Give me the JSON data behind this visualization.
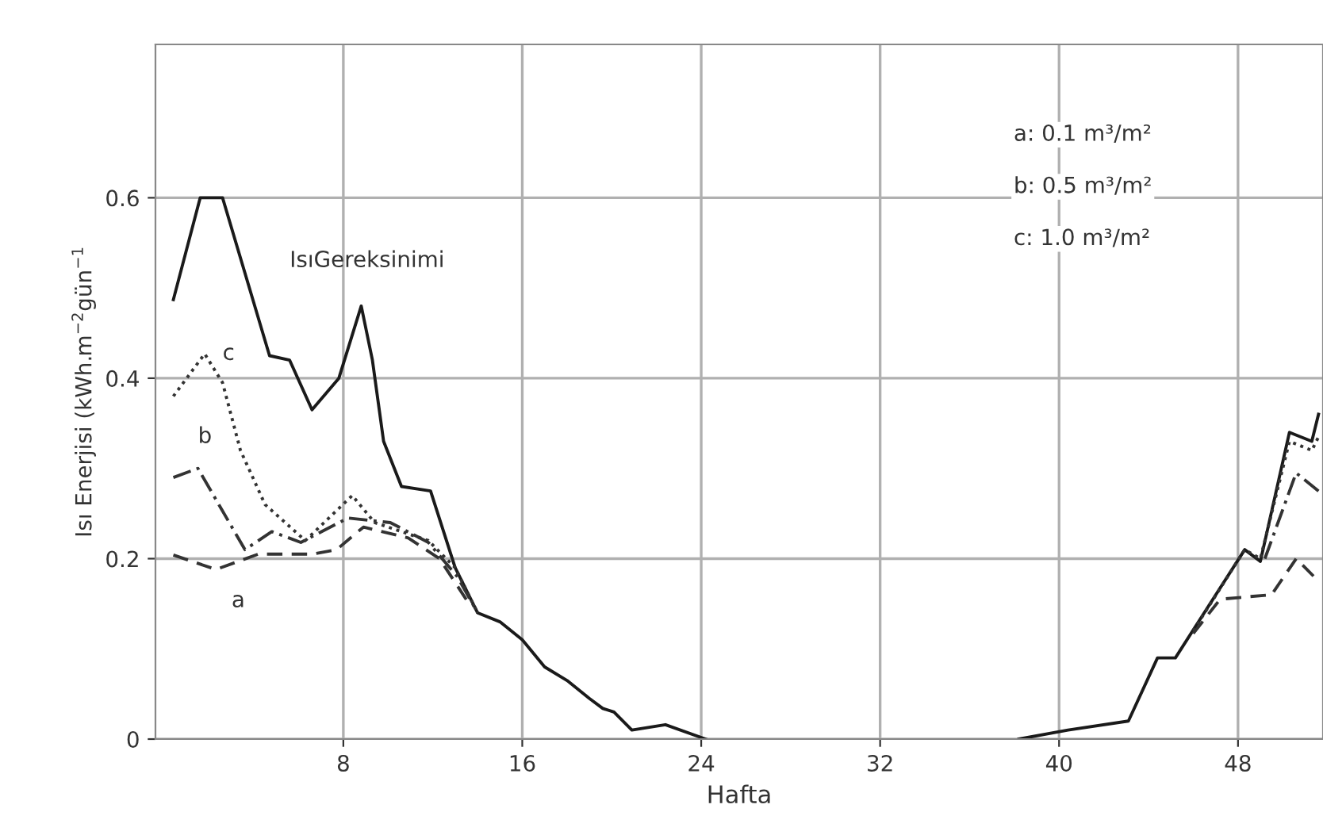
{
  "chart_data": {
    "type": "line",
    "xlabel": "Hafta",
    "ylabel": "Isı Enerjisi (kWh.m$^{−2}$gün$^{−1}$",
    "xlim": [
      -0.4,
      51.8
    ],
    "ylim": [
      0,
      0.77
    ],
    "xticks": [
      8,
      16,
      24,
      32,
      40,
      48
    ],
    "yticks": [
      0,
      0.2,
      0.4,
      0.6
    ],
    "grid": true,
    "marker": "none",
    "series": [
      {
        "name": "IsıGereksinimi",
        "color": "#1a1a1a",
        "line_style": "solid",
        "x": [
          0.4,
          1.6,
          2.6,
          4.7,
          5.6,
          6.6,
          7.8,
          8.8,
          9.3,
          9.8,
          10.6,
          11.9,
          13.0,
          14,
          15,
          16,
          17,
          18,
          19,
          19.6,
          20.1,
          20.9,
          22.4,
          24.2,
          31,
          38.2,
          40.4,
          43.1,
          44.4,
          45.2,
          48.3,
          49.0,
          50.3,
          51.3,
          51.6
        ],
        "values": [
          0.487,
          0.6,
          0.6,
          0.425,
          0.42,
          0.365,
          0.4,
          0.48,
          0.42,
          0.33,
          0.28,
          0.275,
          0.19,
          0.14,
          0.13,
          0.11,
          0.08,
          0.065,
          0.045,
          0.034,
          0.03,
          0.01,
          0.016,
          0,
          null,
          0,
          0.01,
          0.02,
          0.09,
          0.09,
          0.21,
          0.197,
          0.34,
          0.33,
          0.36
        ]
      },
      {
        "name": "c",
        "color": "#333333",
        "line_style": "dotted",
        "x": [
          0.4,
          1.8,
          2.6,
          3.4,
          4.5,
          6.3,
          8.4,
          9.4,
          11.8,
          13.0,
          14,
          31,
          46.0,
          48.3,
          49.0,
          50.3,
          51.3,
          51.6
        ],
        "values": [
          0.38,
          0.427,
          0.395,
          0.32,
          0.26,
          0.22,
          0.27,
          0.24,
          0.22,
          0.19,
          0.14,
          null,
          0.12,
          0.21,
          0.2,
          0.33,
          0.32,
          0.335
        ]
      },
      {
        "name": "b",
        "color": "#333333",
        "line_style": "dashdot",
        "x": [
          0.4,
          1.5,
          3.6,
          4.8,
          6.1,
          8.2,
          10.1,
          11.8,
          13.1,
          14,
          31,
          49.2,
          50.6,
          51.6
        ],
        "values": [
          0.29,
          0.3,
          0.21,
          0.23,
          0.218,
          0.245,
          0.24,
          0.218,
          0.18,
          0.14,
          null,
          0.2,
          0.295,
          0.275
        ]
      },
      {
        "name": "a",
        "color": "#333333",
        "line_style": "dashed",
        "x": [
          0.4,
          2.3,
          4.2,
          6.6,
          7.7,
          8.9,
          10.9,
          12.3,
          13.7,
          31,
          46.0,
          47.2,
          49.5,
          50.6,
          51.6
        ],
        "values": [
          0.204,
          0.188,
          0.205,
          0.205,
          0.21,
          0.235,
          0.223,
          0.2,
          0.147,
          null,
          0.117,
          0.155,
          0.16,
          0.2,
          0.175
        ]
      }
    ],
    "annotations": [
      "a: 0.1 m³/m²",
      "b: 0.5 m³/m²",
      "c: 1.0 m³/m²"
    ]
  }
}
